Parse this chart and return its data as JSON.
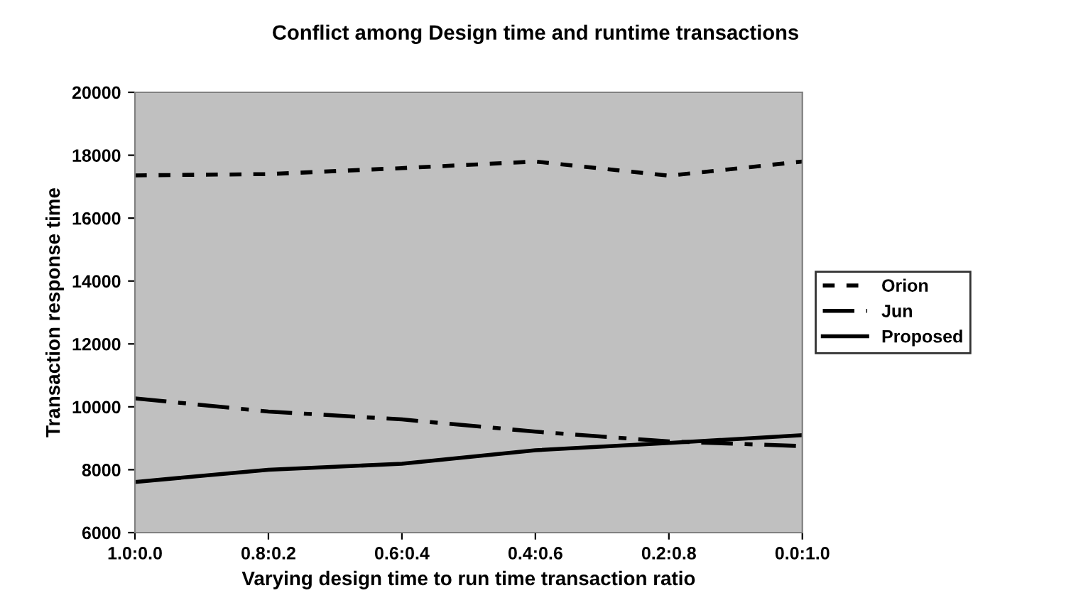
{
  "chart_data": {
    "type": "line",
    "title": "Conflict among Design time and runtime transactions",
    "xlabel": "Varying design time to run time transaction ratio",
    "ylabel": "Transaction response time",
    "categories": [
      "1.0:0.0",
      "0.8:0.2",
      "0.6:0.4",
      "0.4:0.6",
      "0.2:0.8",
      "0.0:1.0"
    ],
    "series": [
      {
        "name": "Orion",
        "color": "#000000",
        "line_style": "dotted",
        "values": [
          17360,
          17400,
          17590,
          17800,
          17350,
          17800
        ]
      },
      {
        "name": "Jun",
        "color": "#000000",
        "line_style": "dashed",
        "values": [
          10270,
          9850,
          9600,
          9210,
          8900,
          8750
        ]
      },
      {
        "name": "Proposed",
        "color": "#000000",
        "line_style": "solid",
        "values": [
          7610,
          8000,
          8190,
          8620,
          8850,
          9100
        ]
      }
    ],
    "ylim": [
      6000,
      20000
    ],
    "yticks": [
      6000,
      8000,
      10000,
      12000,
      14000,
      16000,
      18000,
      20000
    ],
    "grid": false,
    "legend": "right",
    "marker": "none"
  }
}
